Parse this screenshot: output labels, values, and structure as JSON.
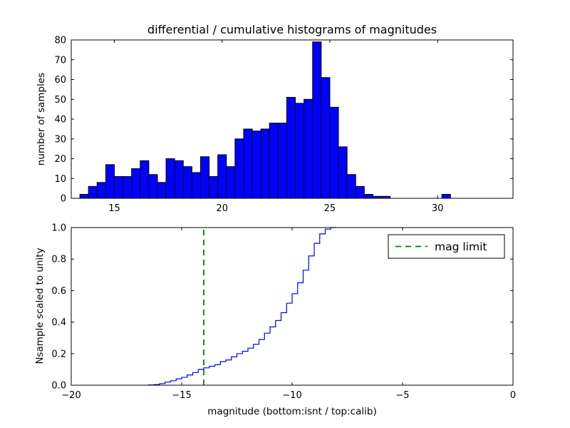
{
  "figure": {
    "title": "differential / cumulative histograms of magnitudes"
  },
  "chart_data": [
    {
      "id": "top-differential-histogram",
      "type": "bar",
      "title": "differential / cumulative histograms of magnitudes",
      "xlabel": "",
      "ylabel": "number of samples",
      "bar_color": "#0000ff",
      "bar_edge_color": "#000000",
      "grid": false,
      "xlim": [
        13,
        33.5
      ],
      "ylim": [
        0,
        80
      ],
      "bin_start": 13.4,
      "bin_width": 0.4,
      "values": [
        2,
        6,
        8,
        17,
        11,
        11,
        15,
        19,
        12,
        8,
        20,
        19,
        16,
        13,
        21,
        11,
        22,
        16,
        30,
        35,
        34,
        35,
        38,
        38,
        51,
        48,
        50,
        79,
        61,
        46,
        26,
        12,
        6,
        2,
        1,
        1,
        0,
        0,
        0,
        0,
        0,
        0,
        2
      ],
      "xticks": {
        "values": [
          15,
          20,
          25,
          30
        ],
        "labels": [
          "15",
          "20",
          "25",
          "30"
        ]
      },
      "yticks": {
        "values": [
          0,
          10,
          20,
          30,
          40,
          50,
          60,
          70,
          80
        ],
        "labels": [
          "0",
          "10",
          "20",
          "30",
          "40",
          "50",
          "60",
          "70",
          "80"
        ]
      }
    },
    {
      "id": "bottom-cumulative-histogram",
      "type": "line",
      "title": "",
      "xlabel": "magnitude (bottom:isnt / top:calib)",
      "ylabel": "Nsample scaled to unity",
      "line_color": "#0000ff",
      "grid": false,
      "xlim": [
        -20,
        0
      ],
      "ylim": [
        0,
        1
      ],
      "bin_start": -16.5,
      "bin_width": 0.25,
      "cumulative": [
        0.002,
        0.004,
        0.01,
        0.02,
        0.028,
        0.04,
        0.05,
        0.065,
        0.08,
        0.1,
        0.11,
        0.12,
        0.13,
        0.15,
        0.16,
        0.18,
        0.2,
        0.215,
        0.235,
        0.26,
        0.29,
        0.33,
        0.37,
        0.41,
        0.46,
        0.52,
        0.58,
        0.65,
        0.73,
        0.82,
        0.9,
        0.96,
        0.99,
        1.0
      ],
      "vline": {
        "x": -14,
        "color": "#008000",
        "linestyle": "dashed",
        "label": "mag limit"
      },
      "legend": {
        "label": "mag limit",
        "location": "upper right"
      },
      "xticks": {
        "values": [
          -20,
          -15,
          -10,
          -5,
          0
        ],
        "labels": [
          "−20",
          "−15",
          "−10",
          "−5",
          "0"
        ]
      },
      "yticks": {
        "values": [
          0,
          0.2,
          0.4,
          0.6,
          0.8,
          1.0
        ],
        "labels": [
          "0.0",
          "0.2",
          "0.4",
          "0.6",
          "0.8",
          "1.0"
        ]
      }
    }
  ]
}
